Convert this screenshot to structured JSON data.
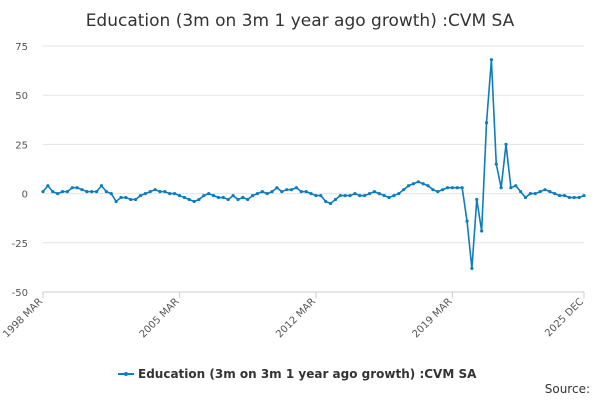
{
  "chart_data": {
    "type": "line",
    "title": "Education (3m on 3m 1 year ago growth) :CVM SA",
    "source_label": "Source:",
    "categories": [
      "1998 MAR",
      null,
      null,
      null,
      null,
      null,
      null,
      null,
      null,
      null,
      null,
      null,
      null,
      null,
      null,
      null,
      null,
      null,
      null,
      null,
      null,
      null,
      null,
      null,
      null,
      null,
      null,
      null,
      "2005 MAR",
      null,
      null,
      null,
      null,
      null,
      null,
      null,
      null,
      null,
      null,
      null,
      null,
      null,
      null,
      null,
      null,
      null,
      null,
      null,
      null,
      null,
      null,
      null,
      null,
      null,
      null,
      null,
      "2012 MAR",
      null,
      null,
      null,
      null,
      null,
      null,
      null,
      null,
      null,
      null,
      null,
      null,
      null,
      null,
      null,
      null,
      null,
      null,
      null,
      null,
      null,
      null,
      null,
      null,
      null,
      null,
      null,
      "2019 MAR",
      null,
      null,
      null,
      null,
      null,
      null,
      null,
      null,
      null,
      null,
      null,
      null,
      null,
      null,
      null,
      null,
      null,
      null,
      null,
      null,
      null,
      null,
      null,
      null,
      null,
      null,
      "2025 DEC"
    ],
    "series": [
      {
        "name": "Education (3m on 3m 1 year ago growth) :CVM SA",
        "color": "#0e7cc1",
        "values": [
          1,
          4,
          1,
          0,
          1,
          1,
          3,
          3,
          2,
          1,
          1,
          1,
          4,
          1,
          0,
          -4,
          -2,
          -2,
          -3,
          -3,
          -1,
          0,
          1,
          2,
          1,
          1,
          0,
          0,
          -1,
          -2,
          -3,
          -4,
          -3,
          -1,
          0,
          -1,
          -2,
          -2,
          -3,
          -1,
          -3,
          -2,
          -3,
          -1,
          0,
          1,
          0,
          1,
          3,
          1,
          2,
          2,
          3,
          1,
          1,
          0,
          -1,
          -1,
          -4,
          -5,
          -3,
          -1,
          -1,
          -1,
          0,
          -1,
          -1,
          0,
          1,
          0,
          -1,
          -2,
          -1,
          0,
          2,
          4,
          5,
          6,
          5,
          4,
          2,
          1,
          2,
          3,
          3,
          3,
          3,
          -14,
          -38,
          -3,
          -19,
          36,
          68,
          15,
          3,
          25,
          3,
          4,
          1,
          -2,
          0,
          0,
          1,
          2,
          1,
          0,
          -1,
          -1,
          -2,
          -2,
          -2,
          -1
        ]
      }
    ],
    "ylim": [
      -50,
      75
    ],
    "yticks": [
      -50,
      -25,
      0,
      25,
      50,
      75
    ],
    "grid": true,
    "legend": "bottom"
  }
}
